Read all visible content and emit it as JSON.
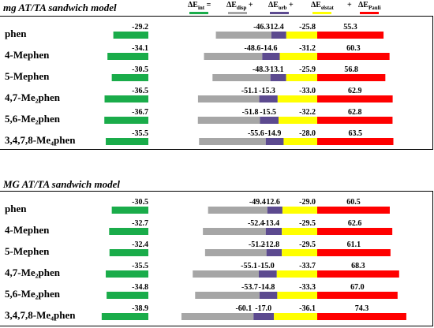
{
  "colors": {
    "int": "#1aac4a",
    "disp": "#a6a6a6",
    "orb": "#5c4a8f",
    "elstat": "#ffff00",
    "pauli": "#ff0000"
  },
  "legend": {
    "items": [
      {
        "key": "int",
        "label": "ΔE",
        "sub": "int",
        "suffix": " ="
      },
      {
        "key": "disp",
        "label": "ΔE",
        "sub": "disp",
        "suffix": " +"
      },
      {
        "key": "orb",
        "label": "ΔE",
        "sub": "orb",
        "suffix": " +"
      },
      {
        "key": "elstat",
        "label": "ΔE",
        "sub": "elstat",
        "suffix": " +"
      },
      {
        "key": "pauli",
        "label": "ΔE",
        "sub": "Pauli",
        "suffix": ""
      }
    ],
    "plus_sign": "+"
  },
  "chart_data": [
    {
      "type": "bar",
      "title": "mg AT/TA sandwich model",
      "categories": [
        "phen",
        "4-Mephen",
        "5-Mephen",
        "4,7-Me₂phen",
        "5,6-Me₂phen",
        "3,4,7,8-Me₄phen"
      ],
      "series": [
        {
          "key": "int",
          "values": [
            -29.2,
            -34.1,
            -30.5,
            -36.5,
            -36.7,
            -35.5
          ]
        },
        {
          "key": "disp",
          "values": [
            -46.3,
            -48.6,
            -48.3,
            -51.1,
            -51.8,
            -55.6
          ]
        },
        {
          "key": "orb",
          "values": [
            -12.4,
            -14.6,
            -13.1,
            -15.3,
            -15.5,
            -14.9
          ]
        },
        {
          "key": "elstat",
          "values": [
            -25.8,
            -31.2,
            -25.9,
            -33.0,
            -32.2,
            -28.0
          ]
        },
        {
          "key": "pauli",
          "values": [
            55.3,
            60.3,
            56.8,
            62.9,
            62.8,
            63.5
          ]
        }
      ]
    },
    {
      "type": "bar",
      "title": "MG AT/TA sandwich model",
      "categories": [
        "phen",
        "4-Mephen",
        "5-Mephen",
        "4,7-Me₂phen",
        "5,6-Me₂phen",
        "3,4,7,8-Me₄phen"
      ],
      "series": [
        {
          "key": "int",
          "values": [
            -30.5,
            -32.7,
            -32.4,
            -35.5,
            -34.8,
            -38.9
          ]
        },
        {
          "key": "disp",
          "values": [
            -49.4,
            -52.4,
            -51.2,
            -55.1,
            -53.7,
            -60.1
          ]
        },
        {
          "key": "orb",
          "values": [
            -12.6,
            -13.4,
            -12.8,
            -15.0,
            -14.8,
            -17.0
          ]
        },
        {
          "key": "elstat",
          "values": [
            -29.0,
            -29.5,
            -29.5,
            -33.7,
            -33.3,
            -36.1
          ]
        },
        {
          "key": "pauli",
          "values": [
            60.5,
            62.6,
            61.1,
            68.3,
            67.0,
            74.3
          ]
        }
      ]
    }
  ]
}
